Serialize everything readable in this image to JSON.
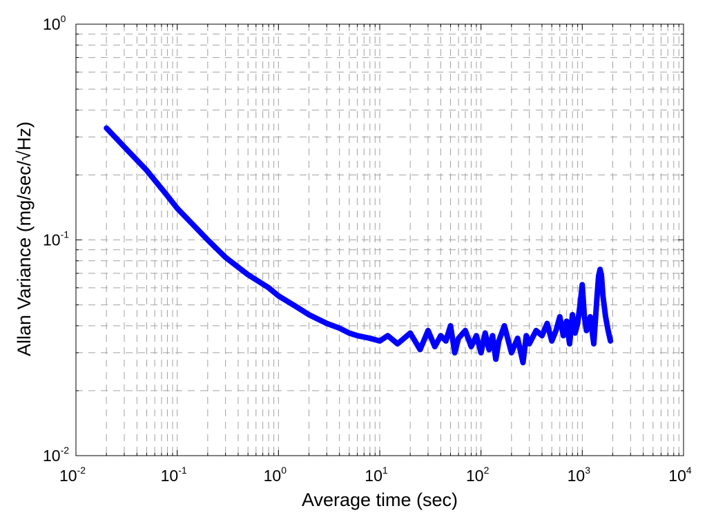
{
  "chart_data": {
    "type": "line",
    "title": "",
    "xlabel": "Average time (sec)",
    "ylabel": "Allan Variance (mg/sec/√Hz)",
    "x_scale": "log",
    "y_scale": "log",
    "xlim": [
      0.01,
      10000
    ],
    "ylim": [
      0.01,
      1
    ],
    "grid": true,
    "x_ticks": [
      {
        "base": "10",
        "exp": "-2"
      },
      {
        "base": "10",
        "exp": "-1"
      },
      {
        "base": "10",
        "exp": "0"
      },
      {
        "base": "10",
        "exp": "1"
      },
      {
        "base": "10",
        "exp": "2"
      },
      {
        "base": "10",
        "exp": "3"
      },
      {
        "base": "10",
        "exp": "4"
      }
    ],
    "y_ticks": [
      {
        "base": "10",
        "exp": "-2"
      },
      {
        "base": "10",
        "exp": "-1"
      },
      {
        "base": "10",
        "exp": "0"
      }
    ],
    "line_color": "#0000ff",
    "grid_color": "#a0a0a0",
    "series": [
      {
        "x": [
          0.02,
          0.03,
          0.05,
          0.08,
          0.1,
          0.15,
          0.2,
          0.3,
          0.5,
          0.8,
          1.0,
          1.5,
          2,
          3,
          4,
          5,
          6,
          8,
          10,
          12,
          15,
          20,
          25,
          30,
          35,
          40,
          45,
          50,
          55,
          60,
          70,
          80,
          90,
          100,
          110,
          120,
          130,
          140,
          150,
          170,
          200,
          230,
          260,
          280,
          300,
          350,
          400,
          450,
          500,
          550,
          600,
          650,
          700,
          750,
          800,
          850,
          900,
          950,
          1000,
          1050,
          1100,
          1200,
          1300,
          1400,
          1450,
          1500,
          1550,
          1600,
          1700,
          1800,
          1900
        ],
        "y": [
          0.33,
          0.27,
          0.21,
          0.16,
          0.14,
          0.115,
          0.1,
          0.083,
          0.069,
          0.06,
          0.055,
          0.049,
          0.045,
          0.041,
          0.039,
          0.037,
          0.036,
          0.035,
          0.034,
          0.036,
          0.033,
          0.037,
          0.031,
          0.038,
          0.032,
          0.036,
          0.034,
          0.04,
          0.03,
          0.035,
          0.038,
          0.032,
          0.036,
          0.03,
          0.037,
          0.031,
          0.036,
          0.028,
          0.034,
          0.04,
          0.03,
          0.035,
          0.027,
          0.036,
          0.033,
          0.038,
          0.036,
          0.041,
          0.034,
          0.038,
          0.044,
          0.036,
          0.042,
          0.033,
          0.045,
          0.037,
          0.041,
          0.05,
          0.062,
          0.044,
          0.038,
          0.044,
          0.033,
          0.055,
          0.068,
          0.073,
          0.068,
          0.055,
          0.044,
          0.038,
          0.034
        ]
      }
    ]
  }
}
